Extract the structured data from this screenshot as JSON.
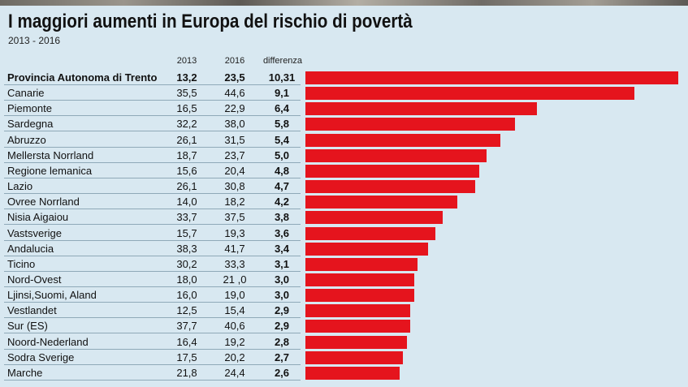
{
  "header": {
    "title": "I maggiori aumenti in Europa del rischio di povertà",
    "subtitle": "2013 - 2016"
  },
  "columns": [
    "2013",
    "2016",
    "differenza"
  ],
  "colors": {
    "bar": "#e5141d",
    "background": "#d8e8f1"
  },
  "chart_data": {
    "type": "bar",
    "orientation": "horizontal",
    "title": "I maggiori aumenti in Europa del rischio di povertà",
    "subtitle": "2013 - 2016",
    "categories": [
      "Provincia Autonoma di Trento",
      "Canarie",
      "Piemonte",
      "Sardegna",
      "Abruzzo",
      "Mellersta Norrland",
      "Regione lemanica",
      "Lazio",
      "Ovree Norrland",
      "Nisia Aigaiou",
      "Vastsverige",
      "Andalucia",
      "Ticino",
      "Nord-Ovest",
      "Ljinsi,Suomi, Aland",
      "Vestlandet",
      "Sur (ES)",
      "Noord-Nederland",
      "Sodra Sverige",
      "Marche"
    ],
    "rows": [
      {
        "name": "Provincia Autonoma di Trento",
        "v2013": "13,2",
        "v2016": "23,5",
        "diff": "10,31",
        "value": 10.31
      },
      {
        "name": "Canarie",
        "v2013": "35,5",
        "v2016": "44,6",
        "diff": "9,1",
        "value": 9.1
      },
      {
        "name": "Piemonte",
        "v2013": "16,5",
        "v2016": "22,9",
        "diff": "6,4",
        "value": 6.4
      },
      {
        "name": "Sardegna",
        "v2013": "32,2",
        "v2016": "38,0",
        "diff": "5,8",
        "value": 5.8
      },
      {
        "name": "Abruzzo",
        "v2013": "26,1",
        "v2016": "31,5",
        "diff": "5,4",
        "value": 5.4
      },
      {
        "name": "Mellersta Norrland",
        "v2013": "18,7",
        "v2016": "23,7",
        "diff": "5,0",
        "value": 5.0
      },
      {
        "name": "Regione lemanica",
        "v2013": "15,6",
        "v2016": "20,4",
        "diff": "4,8",
        "value": 4.8
      },
      {
        "name": "Lazio",
        "v2013": "26,1",
        "v2016": "30,8",
        "diff": "4,7",
        "value": 4.7
      },
      {
        "name": "Ovree Norrland",
        "v2013": "14,0",
        "v2016": "18,2",
        "diff": "4,2",
        "value": 4.2
      },
      {
        "name": "Nisia Aigaiou",
        "v2013": "33,7",
        "v2016": "37,5",
        "diff": "3,8",
        "value": 3.8
      },
      {
        "name": "Vastsverige",
        "v2013": "15,7",
        "v2016": "19,3",
        "diff": "3,6",
        "value": 3.6
      },
      {
        "name": "Andalucia",
        "v2013": "38,3",
        "v2016": "41,7",
        "diff": "3,4",
        "value": 3.4
      },
      {
        "name": "Ticino",
        "v2013": "30,2",
        "v2016": "33,3",
        "diff": "3,1",
        "value": 3.1
      },
      {
        "name": "Nord-Ovest",
        "v2013": "18,0",
        "v2016": "21 ,0",
        "diff": "3,0",
        "value": 3.0
      },
      {
        "name": "Ljinsi,Suomi, Aland",
        "v2013": "16,0",
        "v2016": "19,0",
        "diff": "3,0",
        "value": 3.0
      },
      {
        "name": "Vestlandet",
        "v2013": "12,5",
        "v2016": "15,4",
        "diff": "2,9",
        "value": 2.9
      },
      {
        "name": "Sur (ES)",
        "v2013": "37,7",
        "v2016": "40,6",
        "diff": "2,9",
        "value": 2.9
      },
      {
        "name": "Noord-Nederland",
        "v2013": "16,4",
        "v2016": "19,2",
        "diff": "2,8",
        "value": 2.8
      },
      {
        "name": "Sodra Sverige",
        "v2013": "17,5",
        "v2016": "20,2",
        "diff": "2,7",
        "value": 2.7
      },
      {
        "name": "Marche",
        "v2013": "21,8",
        "v2016": "24,4",
        "diff": "2,6",
        "value": 2.6
      }
    ],
    "xlim": [
      0,
      10.31
    ],
    "grid": false,
    "legend": "none"
  }
}
